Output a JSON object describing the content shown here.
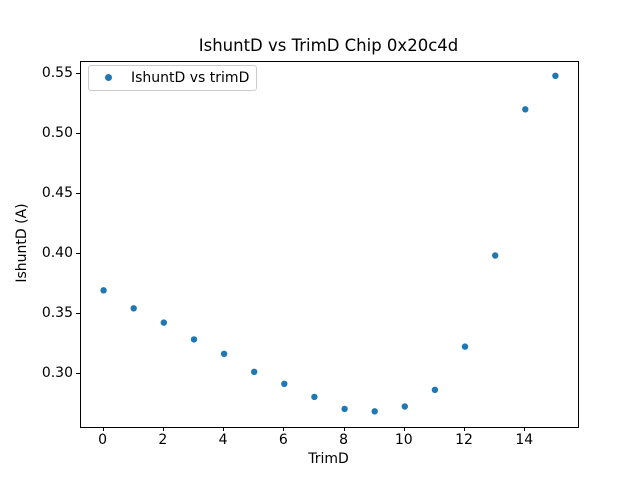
{
  "figure": {
    "background_color": "#ffffff",
    "axes_edge_color": "#000000",
    "legend_border_color": "#cccccc"
  },
  "chart_data": {
    "type": "scatter",
    "title": "IshuntD vs TrimD Chip 0x20c4d",
    "xlabel": "TrimD",
    "ylabel": "IshuntD (A)",
    "legend_entries": [
      "IshuntD vs trimD"
    ],
    "legend_position": "upper left",
    "marker_color": "#1f77b4",
    "grid": false,
    "x": [
      0,
      1,
      2,
      3,
      4,
      5,
      6,
      7,
      8,
      9,
      10,
      11,
      12,
      13,
      14,
      15
    ],
    "y": [
      0.37,
      0.355,
      0.343,
      0.329,
      0.317,
      0.302,
      0.292,
      0.281,
      0.271,
      0.269,
      0.273,
      0.287,
      0.323,
      0.399,
      0.521,
      0.549
    ],
    "xlim": [
      -0.75,
      15.75
    ],
    "ylim": [
      0.2555,
      0.5605
    ],
    "xticks": [
      0,
      2,
      4,
      6,
      8,
      10,
      12,
      14
    ],
    "xtick_labels": [
      "0",
      "2",
      "4",
      "6",
      "8",
      "10",
      "12",
      "14"
    ],
    "yticks": [
      0.3,
      0.35,
      0.4,
      0.45,
      0.5,
      0.55
    ],
    "ytick_labels": [
      "0.30",
      "0.35",
      "0.40",
      "0.45",
      "0.50",
      "0.55"
    ]
  }
}
